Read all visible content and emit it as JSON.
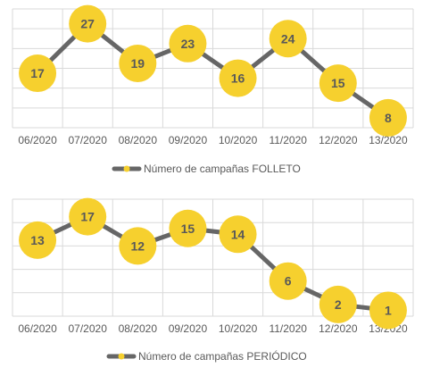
{
  "colors": {
    "line": "#666666",
    "marker": "#F6D02E",
    "marker_text": "#595959",
    "grid": "#D9D9D9",
    "axis_text": "#595959"
  },
  "chart_data": [
    {
      "type": "line",
      "categories": [
        "06/2020",
        "07/2020",
        "08/2020",
        "09/2020",
        "10/2020",
        "11/2020",
        "12/2020",
        "13/2020"
      ],
      "series": [
        {
          "name": "Número de campañas FOLLETO",
          "values": [
            17,
            27,
            19,
            23,
            16,
            24,
            15,
            8
          ]
        }
      ],
      "ylim": [
        6,
        30
      ],
      "grid": true,
      "data_labels": true,
      "legend": "bottom"
    },
    {
      "type": "line",
      "categories": [
        "06/2020",
        "07/2020",
        "08/2020",
        "09/2020",
        "10/2020",
        "11/2020",
        "12/2020",
        "13/2020"
      ],
      "series": [
        {
          "name": "Número de campañas PERIÓDICO",
          "values": [
            13,
            17,
            12,
            15,
            14,
            6,
            2,
            1
          ]
        }
      ],
      "ylim": [
        0,
        20
      ],
      "grid": true,
      "data_labels": true,
      "legend": "bottom"
    }
  ]
}
